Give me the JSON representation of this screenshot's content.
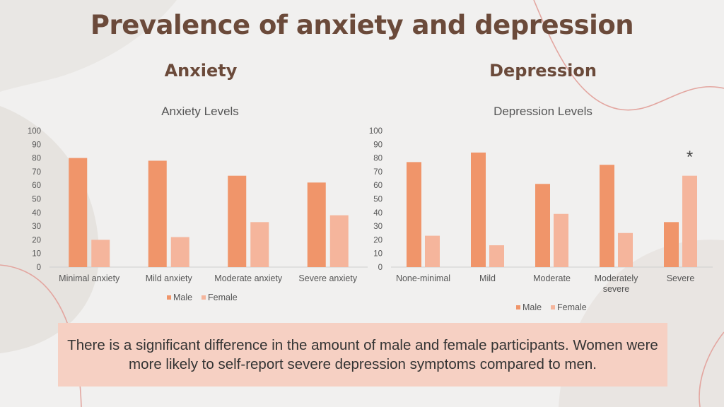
{
  "page": {
    "title": "Prevalence of anxiety and depression",
    "left_heading": "Anxiety",
    "right_heading": "Depression",
    "note": "There is a significant difference in the amount of male and female participants. Women were more likely to self-report severe depression symptoms compared to men.",
    "colors": {
      "male": "#f0956a",
      "female": "#f5b59c",
      "title": "#6b4a3a",
      "note_bg": "#f6d0c3",
      "deco_line": "#e3a6a0"
    }
  },
  "chart_data": [
    {
      "type": "bar",
      "title": "Anxiety Levels",
      "categories": [
        "Minimal anxiety",
        "Mild anxiety",
        "Moderate anxiety",
        "Severe anxiety"
      ],
      "series": [
        {
          "name": "Male",
          "values": [
            80,
            78,
            67,
            62
          ]
        },
        {
          "name": "Female",
          "values": [
            20,
            22,
            33,
            38
          ]
        }
      ],
      "ylim": [
        0,
        100
      ],
      "yticks": [
        0,
        10,
        20,
        30,
        40,
        50,
        60,
        70,
        80,
        90,
        100
      ],
      "grid": false,
      "legend": "bottom"
    },
    {
      "type": "bar",
      "title": "Depression Levels",
      "categories": [
        "None-minimal",
        "Mild",
        "Moderate",
        "Moderately severe",
        "Severe"
      ],
      "series": [
        {
          "name": "Male",
          "values": [
            77,
            84,
            61,
            75,
            33
          ]
        },
        {
          "name": "Female",
          "values": [
            23,
            16,
            39,
            25,
            67
          ]
        }
      ],
      "ylim": [
        0,
        100
      ],
      "yticks": [
        0,
        10,
        20,
        30,
        40,
        50,
        60,
        70,
        80,
        90,
        100
      ],
      "grid": false,
      "legend": "bottom",
      "annotations": [
        {
          "text": "*",
          "category": "Severe"
        }
      ]
    }
  ]
}
